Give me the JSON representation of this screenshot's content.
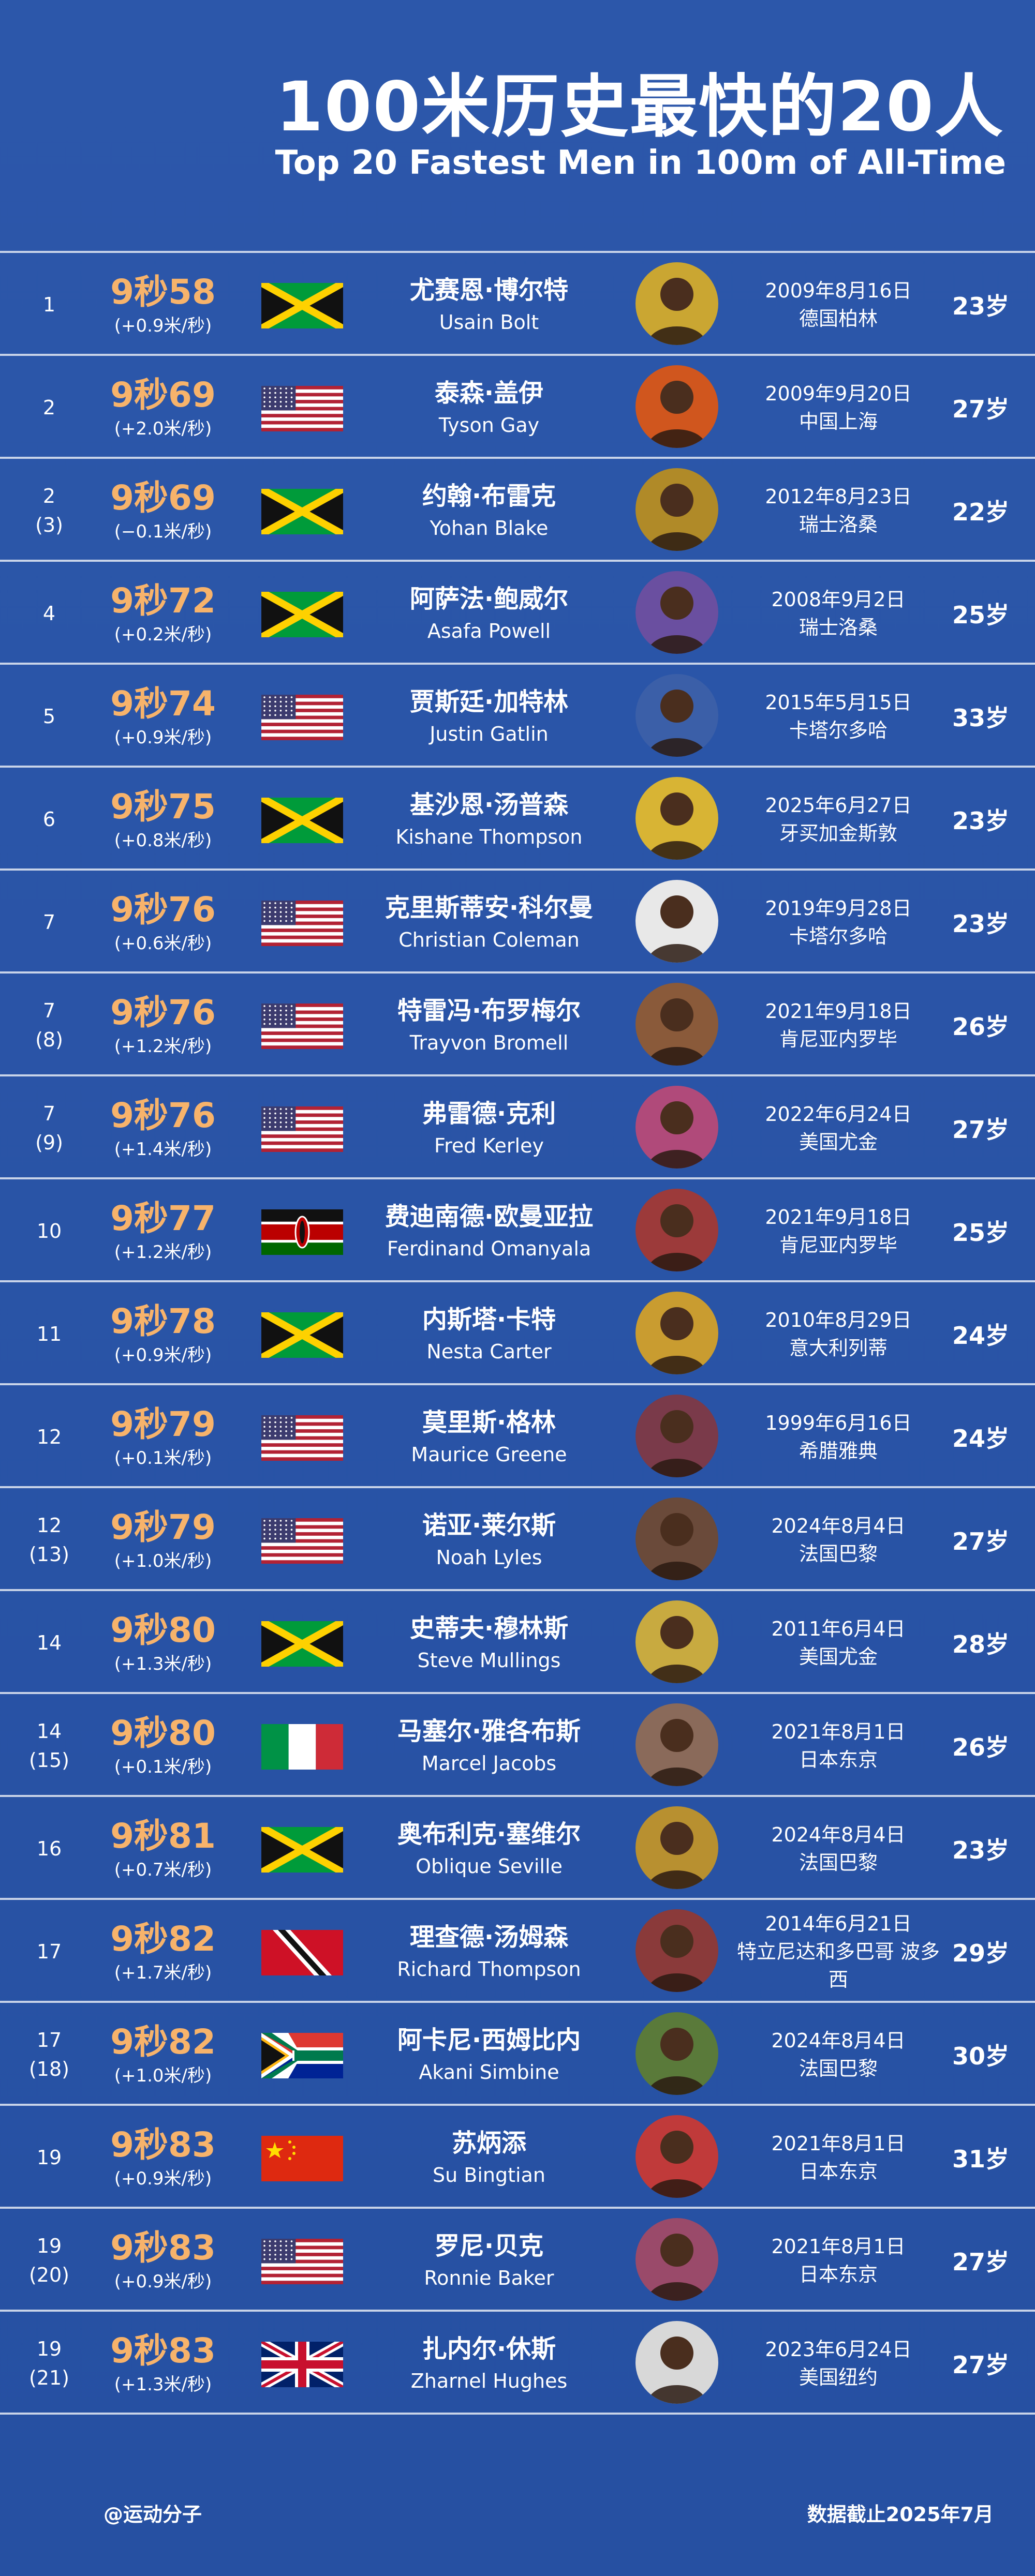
{
  "header": {
    "title_cn": "100米历史最快的20人",
    "title_en": "Top 20 Fastest Men in 100m of All-Time"
  },
  "rows": [
    {
      "rank": "1",
      "rank_sub": "",
      "time": "9秒58",
      "wind": "(+0.9米/秒)",
      "flag": "jamaica",
      "name_cn": "尤赛恩·博尔特",
      "name_en": "Usain Bolt",
      "date": "2009年8月16日",
      "place": "德国柏林",
      "age": "23岁",
      "avatar_color": "#caa632"
    },
    {
      "rank": "2",
      "rank_sub": "",
      "time": "9秒69",
      "wind": "(+2.0米/秒)",
      "flag": "usa",
      "name_cn": "泰森·盖伊",
      "name_en": "Tyson Gay",
      "date": "2009年9月20日",
      "place": "中国上海",
      "age": "27岁",
      "avatar_color": "#d0561e"
    },
    {
      "rank": "2",
      "rank_sub": "(3)",
      "time": "9秒69",
      "wind": "(−0.1米/秒)",
      "flag": "jamaica",
      "name_cn": "约翰·布雷克",
      "name_en": "Yohan Blake",
      "date": "2012年8月23日",
      "place": "瑞士洛桑",
      "age": "22岁",
      "avatar_color": "#b08a28"
    },
    {
      "rank": "4",
      "rank_sub": "",
      "time": "9秒72",
      "wind": "(+0.2米/秒)",
      "flag": "jamaica",
      "name_cn": "阿萨法·鲍威尔",
      "name_en": "Asafa Powell",
      "date": "2008年9月2日",
      "place": "瑞士洛桑",
      "age": "25岁",
      "avatar_color": "#6a4fa0"
    },
    {
      "rank": "5",
      "rank_sub": "",
      "time": "9秒74",
      "wind": "(+0.9米/秒)",
      "flag": "usa",
      "name_cn": "贾斯廷·加特林",
      "name_en": "Justin Gatlin",
      "date": "2015年5月15日",
      "place": "卡塔尔多哈",
      "age": "33岁",
      "avatar_color": "#3b5fa8"
    },
    {
      "rank": "6",
      "rank_sub": "",
      "time": "9秒75",
      "wind": "(+0.8米/秒)",
      "flag": "jamaica",
      "name_cn": "基沙恩·汤普森",
      "name_en": "Kishane Thompson",
      "date": "2025年6月27日",
      "place": "牙买加金斯敦",
      "age": "23岁",
      "avatar_color": "#d8b434"
    },
    {
      "rank": "7",
      "rank_sub": "",
      "time": "9秒76",
      "wind": "(+0.6米/秒)",
      "flag": "usa",
      "name_cn": "克里斯蒂安·科尔曼",
      "name_en": "Christian Coleman",
      "date": "2019年9月28日",
      "place": "卡塔尔多哈",
      "age": "23岁",
      "avatar_color": "#e8e8e8"
    },
    {
      "rank": "7",
      "rank_sub": "(8)",
      "time": "9秒76",
      "wind": "(+1.2米/秒)",
      "flag": "usa",
      "name_cn": "特雷冯·布罗梅尔",
      "name_en": "Trayvon Bromell",
      "date": "2021年9月18日",
      "place": "肯尼亚内罗毕",
      "age": "26岁",
      "avatar_color": "#8a5a3a"
    },
    {
      "rank": "7",
      "rank_sub": "(9)",
      "time": "9秒76",
      "wind": "(+1.4米/秒)",
      "flag": "usa",
      "name_cn": "弗雷德·克利",
      "name_en": "Fred Kerley",
      "date": "2022年6月24日",
      "place": "美国尤金",
      "age": "27岁",
      "avatar_color": "#b04a7a"
    },
    {
      "rank": "10",
      "rank_sub": "",
      "time": "9秒77",
      "wind": "(+1.2米/秒)",
      "flag": "kenya",
      "name_cn": "费迪南德·欧曼亚拉",
      "name_en": "Ferdinand Omanyala",
      "date": "2021年9月18日",
      "place": "肯尼亚内罗毕",
      "age": "25岁",
      "avatar_color": "#9c3a3a"
    },
    {
      "rank": "11",
      "rank_sub": "",
      "time": "9秒78",
      "wind": "(+0.9米/秒)",
      "flag": "jamaica",
      "name_cn": "内斯塔·卡特",
      "name_en": "Nesta Carter",
      "date": "2010年8月29日",
      "place": "意大利列蒂",
      "age": "24岁",
      "avatar_color": "#c99c30"
    },
    {
      "rank": "12",
      "rank_sub": "",
      "time": "9秒79",
      "wind": "(+0.1米/秒)",
      "flag": "usa",
      "name_cn": "莫里斯·格林",
      "name_en": "Maurice Greene",
      "date": "1999年6月16日",
      "place": "希腊雅典",
      "age": "24岁",
      "avatar_color": "#7a3a4a"
    },
    {
      "rank": "12",
      "rank_sub": "(13)",
      "time": "9秒79",
      "wind": "(+1.0米/秒)",
      "flag": "usa",
      "name_cn": "诺亚·莱尔斯",
      "name_en": "Noah Lyles",
      "date": "2024年8月4日",
      "place": "法国巴黎",
      "age": "27岁",
      "avatar_color": "#6a4a3a"
    },
    {
      "rank": "14",
      "rank_sub": "",
      "time": "9秒80",
      "wind": "(+1.3米/秒)",
      "flag": "jamaica",
      "name_cn": "史蒂夫·穆林斯",
      "name_en": "Steve Mullings",
      "date": "2011年6月4日",
      "place": "美国尤金",
      "age": "28岁",
      "avatar_color": "#c8aa40"
    },
    {
      "rank": "14",
      "rank_sub": "(15)",
      "time": "9秒80",
      "wind": "(+0.1米/秒)",
      "flag": "italy",
      "name_cn": "马塞尔·雅各布斯",
      "name_en": "Marcel Jacobs",
      "date": "2021年8月1日",
      "place": "日本东京",
      "age": "26岁",
      "avatar_color": "#8a6a5a"
    },
    {
      "rank": "16",
      "rank_sub": "",
      "time": "9秒81",
      "wind": "(+0.7米/秒)",
      "flag": "jamaica",
      "name_cn": "奥布利克·塞维尔",
      "name_en": "Oblique Seville",
      "date": "2024年8月4日",
      "place": "法国巴黎",
      "age": "23岁",
      "avatar_color": "#b89030"
    },
    {
      "rank": "17",
      "rank_sub": "",
      "time": "9秒82",
      "wind": "(+1.7米/秒)",
      "flag": "trinidad",
      "name_cn": "理查德·汤姆森",
      "name_en": "Richard Thompson",
      "date": "2014年6月21日",
      "place": "特立尼达和多巴哥 波多西",
      "age": "29岁",
      "avatar_color": "#8a3a3a"
    },
    {
      "rank": "17",
      "rank_sub": "(18)",
      "time": "9秒82",
      "wind": "(+1.0米/秒)",
      "flag": "south-africa",
      "name_cn": "阿卡尼·西姆比内",
      "name_en": "Akani Simbine",
      "date": "2024年8月4日",
      "place": "法国巴黎",
      "age": "30岁",
      "avatar_color": "#5a7a3a"
    },
    {
      "rank": "19",
      "rank_sub": "",
      "time": "9秒83",
      "wind": "(+0.9米/秒)",
      "flag": "china",
      "name_cn": "苏炳添",
      "name_en": "Su Bingtian",
      "date": "2021年8月1日",
      "place": "日本东京",
      "age": "31岁",
      "avatar_color": "#c03a3a"
    },
    {
      "rank": "19",
      "rank_sub": "(20)",
      "time": "9秒83",
      "wind": "(+0.9米/秒)",
      "flag": "usa",
      "name_cn": "罗尼·贝克",
      "name_en": "Ronnie Baker",
      "date": "2021年8月1日",
      "place": "日本东京",
      "age": "27岁",
      "avatar_color": "#9a4a6a"
    },
    {
      "rank": "19",
      "rank_sub": "(21)",
      "time": "9秒83",
      "wind": "(+1.3米/秒)",
      "flag": "uk",
      "name_cn": "扎内尔·休斯",
      "name_en": "Zharnel Hughes",
      "date": "2023年6月24日",
      "place": "美国纽约",
      "age": "27岁",
      "avatar_color": "#d8d8d8"
    }
  ],
  "footer": {
    "source": "@运动分子",
    "data_cutoff": "数据截止2025年7月"
  }
}
